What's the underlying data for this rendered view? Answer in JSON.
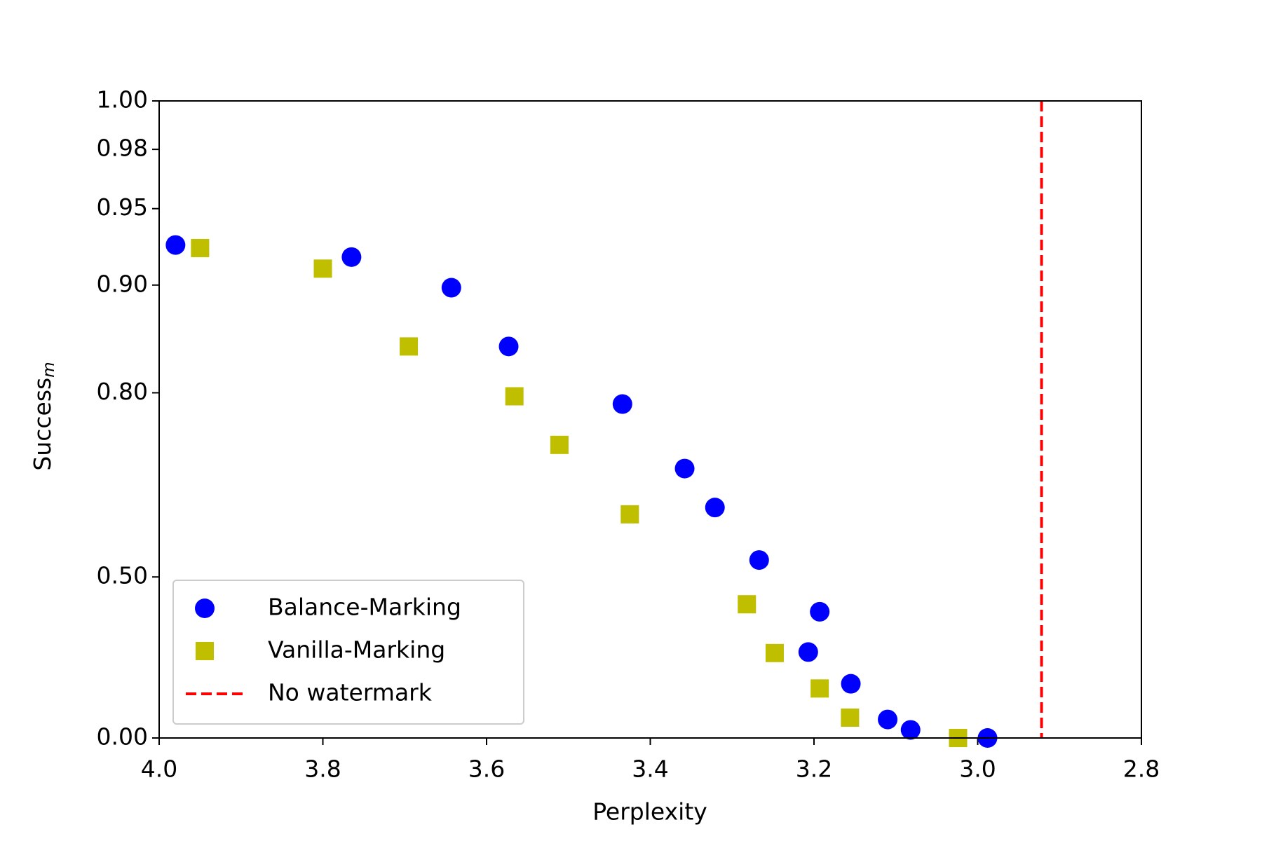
{
  "chart_data": {
    "type": "scatter",
    "xlabel": "Perplexity",
    "ylabel": "Success",
    "ylabel_subscript": "m",
    "xlim": [
      4.0,
      2.8
    ],
    "xticks": [
      {
        "value": 4.0,
        "label": "4.0"
      },
      3.8,
      3.6,
      3.4,
      3.2,
      {
        "value": 3.0,
        "label": "3.0"
      },
      2.8
    ],
    "ylim": [
      0,
      1
    ],
    "yscale": "log-complement",
    "yticks": [
      {
        "value": 0,
        "label": "0.00"
      },
      {
        "value": 0.5,
        "label": "0.50"
      },
      {
        "value": 0.8,
        "label": "0.80"
      },
      {
        "value": 0.9,
        "label": "0.90"
      },
      {
        "value": 0.95,
        "label": "0.95"
      },
      {
        "value": 0.98,
        "label": "0.98"
      },
      {
        "value": 1,
        "label": "1.00"
      }
    ],
    "legend": "lower left",
    "series": [
      {
        "name": "Balance-Marking",
        "color": "#0000ff",
        "marker": "circle",
        "x": [
          3.98,
          3.765,
          3.643,
          3.573,
          3.434,
          3.358,
          3.321,
          3.267,
          3.193,
          3.207,
          3.155,
          3.11,
          3.082,
          2.988
        ],
        "values": [
          0.928,
          0.92,
          0.898,
          0.848,
          0.787,
          0.701,
          0.638,
          0.537,
          0.416,
          0.304,
          0.203,
          0.074,
          0.033,
          0.0
        ]
      },
      {
        "name": "Vanilla-Marking",
        "color": "#bfbf00",
        "marker": "square",
        "x": [
          3.95,
          3.8,
          3.695,
          3.566,
          3.511,
          3.425,
          3.282,
          3.248,
          3.193,
          3.156,
          3.024
        ],
        "values": [
          0.926,
          0.912,
          0.848,
          0.796,
          0.735,
          0.626,
          0.435,
          0.301,
          0.187,
          0.081,
          0.0
        ]
      }
    ],
    "vlines": [
      {
        "name": "No watermark",
        "x": 2.922,
        "color": "#ff0000"
      }
    ]
  }
}
